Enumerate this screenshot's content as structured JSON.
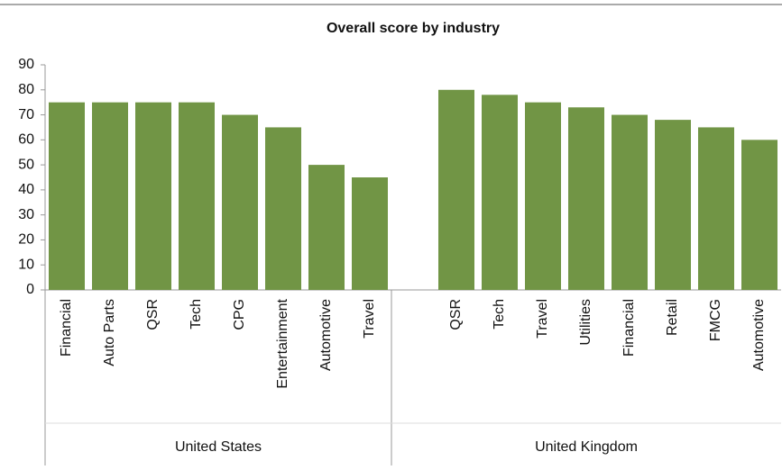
{
  "chart_data": {
    "type": "bar",
    "title": "Overall score by industry",
    "categories": [
      "Financial",
      "Auto Parts",
      "QSR",
      "Tech",
      "CPG",
      "Entertainment",
      "Automotive",
      "Travel",
      null,
      "QSR",
      "Tech",
      "Travel",
      "Utilities",
      "Financial",
      "Retail",
      "FMCG",
      "Automotive"
    ],
    "values": [
      75,
      75,
      75,
      75,
      70,
      65,
      50,
      45,
      null,
      80,
      78,
      75,
      73,
      70,
      68,
      65,
      60
    ],
    "groups": [
      "United States",
      "United Kingdom"
    ],
    "color": "#719545",
    "ylim": [
      0,
      90
    ],
    "yticks": [
      0,
      10,
      20,
      30,
      40,
      50,
      60,
      70,
      80,
      90
    ],
    "grid": false
  }
}
